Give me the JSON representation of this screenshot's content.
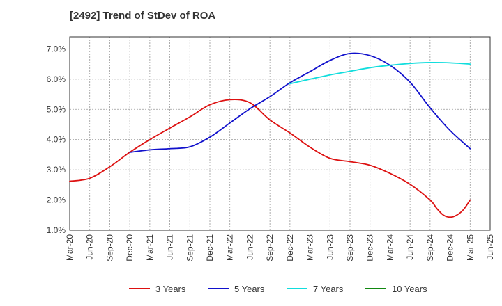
{
  "chart_data": {
    "type": "line",
    "title": "[2492]  Trend of StDev of ROA",
    "xlabel": "",
    "ylabel": "",
    "x_ticks": [
      "Mar-20",
      "Jun-20",
      "Sep-20",
      "Dec-20",
      "Mar-21",
      "Jun-21",
      "Sep-21",
      "Dec-21",
      "Mar-22",
      "Jun-22",
      "Sep-22",
      "Dec-22",
      "Mar-23",
      "Jun-23",
      "Sep-23",
      "Dec-23",
      "Mar-24",
      "Jun-24",
      "Sep-24",
      "Dec-24",
      "Mar-25",
      "Jun-25"
    ],
    "y_ticks": [
      "1.0%",
      "2.0%",
      "3.0%",
      "4.0%",
      "5.0%",
      "6.0%",
      "7.0%"
    ],
    "ylim": [
      1.0,
      7.4
    ],
    "grid": true,
    "legend_position": "bottom",
    "series": [
      {
        "name": "3 Years",
        "color": "#dd1111",
        "x": [
          "Mar-20",
          "Jun-20",
          "Sep-20",
          "Dec-20",
          "Mar-21",
          "Jun-21",
          "Sep-21",
          "Dec-21",
          "Mar-22",
          "Jun-22",
          "Sep-22",
          "Dec-22",
          "Mar-23",
          "Jun-23",
          "Sep-23",
          "Dec-23",
          "Mar-24",
          "Jun-24",
          "Sep-24",
          "Oct-24",
          "Nov-24",
          "Dec-24",
          "Jan-25",
          "Feb-25",
          "Mar-25"
        ],
        "values": [
          2.62,
          2.72,
          3.1,
          3.58,
          4.0,
          4.38,
          4.75,
          5.15,
          5.32,
          5.22,
          4.65,
          4.22,
          3.75,
          3.38,
          3.27,
          3.15,
          2.88,
          2.52,
          2.0,
          1.72,
          1.5,
          1.43,
          1.5,
          1.68,
          2.0
        ]
      },
      {
        "name": "5 Years",
        "color": "#1111cc",
        "x": [
          "Dec-20",
          "Mar-21",
          "Jun-21",
          "Sep-21",
          "Dec-21",
          "Mar-22",
          "Jun-22",
          "Sep-22",
          "Dec-22",
          "Mar-23",
          "Jun-23",
          "Sep-23",
          "Dec-23",
          "Mar-24",
          "Jun-24",
          "Sep-24",
          "Dec-24",
          "Mar-25"
        ],
        "values": [
          3.58,
          3.66,
          3.7,
          3.76,
          4.08,
          4.55,
          5.02,
          5.42,
          5.88,
          6.25,
          6.62,
          6.85,
          6.78,
          6.46,
          5.9,
          5.05,
          4.3,
          3.7
        ]
      },
      {
        "name": "7 Years",
        "color": "#11dddd",
        "x": [
          "Dec-22",
          "Mar-23",
          "Jun-23",
          "Sep-23",
          "Dec-23",
          "Mar-24",
          "Jun-24",
          "Sep-24",
          "Dec-24",
          "Mar-25"
        ],
        "values": [
          5.85,
          6.0,
          6.14,
          6.26,
          6.38,
          6.46,
          6.52,
          6.55,
          6.54,
          6.5
        ]
      },
      {
        "name": "10 Years",
        "color": "#118811",
        "x": [],
        "values": []
      }
    ]
  }
}
